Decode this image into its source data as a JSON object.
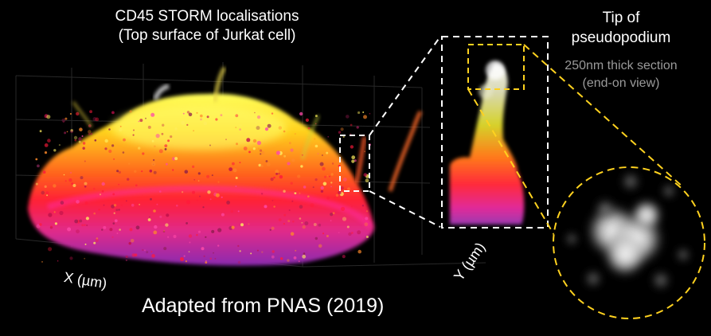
{
  "title": {
    "line1": "CD45 STORM localisations",
    "line2": "(Top surface of Jurkat cell)"
  },
  "tip_label": {
    "line1": "Tip of",
    "line2": "pseudopodium"
  },
  "section_label": {
    "line1": "250nm thick section",
    "line2": "(end-on view)"
  },
  "axes": {
    "x": "X (µm)",
    "y": "Y (µm)"
  },
  "credit": "Adapted from PNAS (2019)",
  "colors": {
    "background": "#000000",
    "zoom_box_white": "#ffffff",
    "zoom_box_yellow": "#ffd21f",
    "secondary_text": "#9a9a9a",
    "colormap": [
      "#7a2aa8",
      "#e0309a",
      "#ff2a3a",
      "#ff7a1a",
      "#ffd020",
      "#ffff60",
      "#ffffff"
    ]
  }
}
